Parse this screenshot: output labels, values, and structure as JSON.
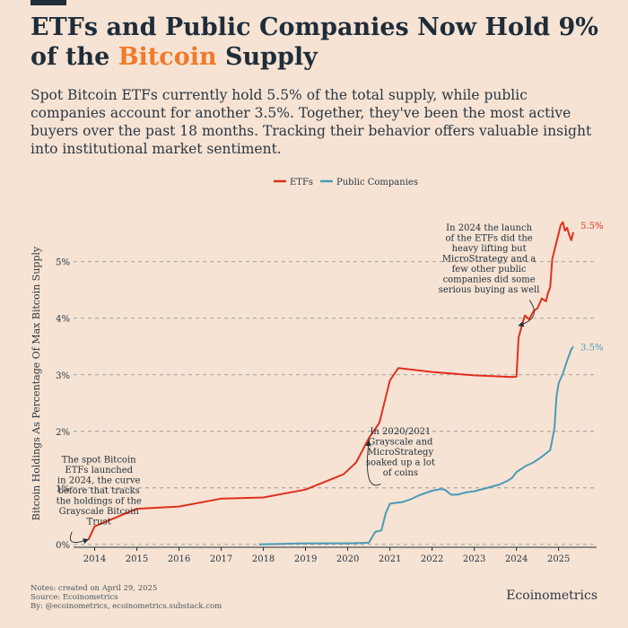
{
  "page": {
    "title_part1": "ETFs and Public Companies Now Hold 9% of the ",
    "title_highlight": "Bitcoin",
    "title_part2": " Supply",
    "subtitle": "Spot Bitcoin ETFs currently hold 5.5% of the total supply, while public companies account for another 3.5%. Together, they've been the most active buyers over the past 18 months. Tracking their behavior offers valuable insight into institutional market sentiment.",
    "notes": [
      "Notes: created on April 29, 2025",
      "Source: Ecoinometrics",
      "By: @ecoinometrics, ecoinometrics.substack.com"
    ],
    "brand": "Ecoinometrics",
    "colors": {
      "background": "#f6e3d3",
      "highlight": "#f07a2a",
      "etfs": "#e0301e",
      "companies": "#4a9bb8",
      "text": "#1f2d3a"
    }
  },
  "chart_data": {
    "type": "line",
    "ylabel": "Bitcoin Holdings As Percentage Of Max Bitcoin Supply",
    "xlabel": "",
    "xlim": [
      2013.5,
      2025.9
    ],
    "ylim": [
      -0.0005,
      0.059
    ],
    "x_ticks": [
      "2014",
      "2015",
      "2016",
      "2017",
      "2018",
      "2019",
      "2020",
      "2021",
      "2022",
      "2023",
      "2024",
      "2025"
    ],
    "y_ticks": [
      {
        "value": 0,
        "label": "0%"
      },
      {
        "value": 0.01,
        "label": "1%"
      },
      {
        "value": 0.02,
        "label": "2%"
      },
      {
        "value": 0.03,
        "label": "3%"
      },
      {
        "value": 0.04,
        "label": "4%"
      },
      {
        "value": 0.05,
        "label": "5%"
      }
    ],
    "grid": "horizontal dashed",
    "legend": {
      "position": "top-center",
      "items": [
        "ETFs",
        "Public Companies"
      ]
    },
    "series": [
      {
        "name": "ETFs",
        "color": "#e0301e",
        "end_label": "5.5%",
        "points": [
          [
            2013.85,
            0.0008
          ],
          [
            2014.0,
            0.0032
          ],
          [
            2015.0,
            0.0063
          ],
          [
            2016.0,
            0.0067
          ],
          [
            2017.0,
            0.0081
          ],
          [
            2018.0,
            0.0083
          ],
          [
            2019.0,
            0.0097
          ],
          [
            2019.9,
            0.0124
          ],
          [
            2020.2,
            0.0145
          ],
          [
            2020.5,
            0.0188
          ],
          [
            2020.75,
            0.0215
          ],
          [
            2021.0,
            0.029
          ],
          [
            2021.2,
            0.0312
          ],
          [
            2022.0,
            0.0305
          ],
          [
            2023.0,
            0.0299
          ],
          [
            2023.9,
            0.0296
          ],
          [
            2024.0,
            0.0297
          ],
          [
            2024.05,
            0.0365
          ],
          [
            2024.12,
            0.0385
          ],
          [
            2024.2,
            0.0405
          ],
          [
            2024.3,
            0.0398
          ],
          [
            2024.4,
            0.0412
          ],
          [
            2024.5,
            0.0418
          ],
          [
            2024.6,
            0.0435
          ],
          [
            2024.7,
            0.043
          ],
          [
            2024.75,
            0.0445
          ],
          [
            2024.8,
            0.0455
          ],
          [
            2024.85,
            0.0505
          ],
          [
            2024.9,
            0.052
          ],
          [
            2024.95,
            0.0535
          ],
          [
            2025.0,
            0.055
          ],
          [
            2025.05,
            0.0565
          ],
          [
            2025.1,
            0.057
          ],
          [
            2025.15,
            0.0555
          ],
          [
            2025.2,
            0.056
          ],
          [
            2025.25,
            0.0548
          ],
          [
            2025.3,
            0.0538
          ],
          [
            2025.35,
            0.0552
          ]
        ]
      },
      {
        "name": "Public Companies",
        "color": "#4a9bb8",
        "end_label": "3.5%",
        "points": [
          [
            2017.9,
            0.0
          ],
          [
            2019.0,
            0.0002
          ],
          [
            2020.0,
            0.0002
          ],
          [
            2020.5,
            0.0003
          ],
          [
            2020.65,
            0.0022
          ],
          [
            2020.8,
            0.0025
          ],
          [
            2020.9,
            0.0055
          ],
          [
            2021.0,
            0.0072
          ],
          [
            2021.1,
            0.0073
          ],
          [
            2021.3,
            0.0075
          ],
          [
            2021.5,
            0.008
          ],
          [
            2021.7,
            0.0087
          ],
          [
            2022.0,
            0.0095
          ],
          [
            2022.2,
            0.0098
          ],
          [
            2022.3,
            0.0097
          ],
          [
            2022.45,
            0.0088
          ],
          [
            2022.6,
            0.0088
          ],
          [
            2022.8,
            0.0092
          ],
          [
            2023.0,
            0.0094
          ],
          [
            2023.2,
            0.0098
          ],
          [
            2023.4,
            0.0102
          ],
          [
            2023.6,
            0.0106
          ],
          [
            2023.8,
            0.0113
          ],
          [
            2023.9,
            0.0118
          ],
          [
            2024.0,
            0.0128
          ],
          [
            2024.2,
            0.0138
          ],
          [
            2024.4,
            0.0145
          ],
          [
            2024.6,
            0.0155
          ],
          [
            2024.8,
            0.0167
          ],
          [
            2024.9,
            0.0205
          ],
          [
            2024.95,
            0.0262
          ],
          [
            2025.0,
            0.0285
          ],
          [
            2025.1,
            0.0302
          ],
          [
            2025.2,
            0.0325
          ],
          [
            2025.3,
            0.0345
          ],
          [
            2025.35,
            0.035
          ]
        ]
      }
    ],
    "annotations": [
      {
        "lines": [
          "The spot Bitcoin",
          "ETFs launched",
          "in 2024, the curve",
          "before that tracks",
          "the holdings of the",
          "Grayscale Bitcoin",
          "Trust"
        ],
        "target": [
          2013.85,
          0.0009
        ],
        "text_anchor": [
          2014.1,
          0.0145
        ]
      },
      {
        "lines": [
          "In 2020/2021",
          "Grayscale and",
          "MicroStrategy",
          "soaked up a lot",
          "of coins"
        ],
        "target": [
          2020.5,
          0.0183
        ],
        "text_anchor": [
          2021.25,
          0.0195
        ]
      },
      {
        "lines": [
          "In 2024 the launch",
          "of the ETFs did the",
          "heavy lifting but",
          "MicroStrategy and a",
          "few other public",
          "companies did some",
          "serious buying as well"
        ],
        "target": [
          2024.05,
          0.0387
        ],
        "text_anchor": [
          2023.35,
          0.0555
        ]
      }
    ]
  }
}
